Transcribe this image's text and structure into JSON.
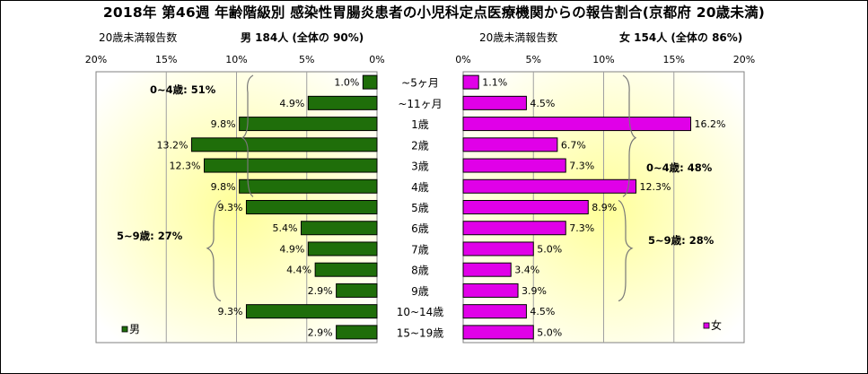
{
  "title": "2018年 第46週 年齢階級別 感染性胃腸炎患者の小児科定点医療機関からの報告割合(京都府 20歳未満)",
  "headers": {
    "male_ratio_label": "20歳未満報告数",
    "male_summary": "男 184人 (全体の 90%)",
    "female_ratio_label": "20歳未満報告数",
    "female_summary": "女 154人 (全体の 86%)"
  },
  "colors": {
    "male": "#1f6e0a",
    "female": "#e000e8",
    "background_glow": "#ffff99"
  },
  "chart_data": {
    "type": "bar",
    "layout": "population-pyramid",
    "categories": [
      "~5ヶ月",
      "~11ヶ月",
      "1歳",
      "2歳",
      "3歳",
      "4歳",
      "5歳",
      "6歳",
      "7歳",
      "8歳",
      "9歳",
      "10~14歳",
      "15~19歳"
    ],
    "series": [
      {
        "name": "男",
        "values": [
          1.0,
          4.9,
          9.8,
          13.2,
          12.3,
          9.8,
          9.3,
          5.4,
          4.9,
          4.4,
          2.9,
          9.3,
          2.9
        ],
        "labels": [
          "1.0%",
          "4.9%",
          "9.8%",
          "13.2%",
          "12.3%",
          "9.8%",
          "9.3%",
          "5.4%",
          "4.9%",
          "4.4%",
          "2.9%",
          "9.3%",
          "2.9%"
        ]
      },
      {
        "name": "女",
        "values": [
          1.1,
          4.5,
          16.2,
          6.7,
          7.3,
          12.3,
          8.9,
          7.3,
          5.0,
          3.4,
          3.9,
          4.5,
          5.0
        ],
        "labels": [
          "1.1%",
          "4.5%",
          "16.2%",
          "6.7%",
          "7.3%",
          "12.3%",
          "8.9%",
          "7.3%",
          "5.0%",
          "3.4%",
          "3.9%",
          "4.5%",
          "5.0%"
        ]
      }
    ],
    "male_axis_ticks": [
      "20%",
      "15%",
      "10%",
      "5%",
      "0%"
    ],
    "female_axis_ticks": [
      "0%",
      "5%",
      "10%",
      "15%",
      "20%"
    ],
    "xlim": [
      0,
      20
    ],
    "grid": true,
    "annotations": {
      "male_0_4": "0~4歳: 51%",
      "male_5_9": "5~9歳: 27%",
      "female_0_4": "0~4歳: 48%",
      "female_5_9": "5~9歳: 28%"
    },
    "legend": {
      "male": "男",
      "female": "女"
    }
  }
}
